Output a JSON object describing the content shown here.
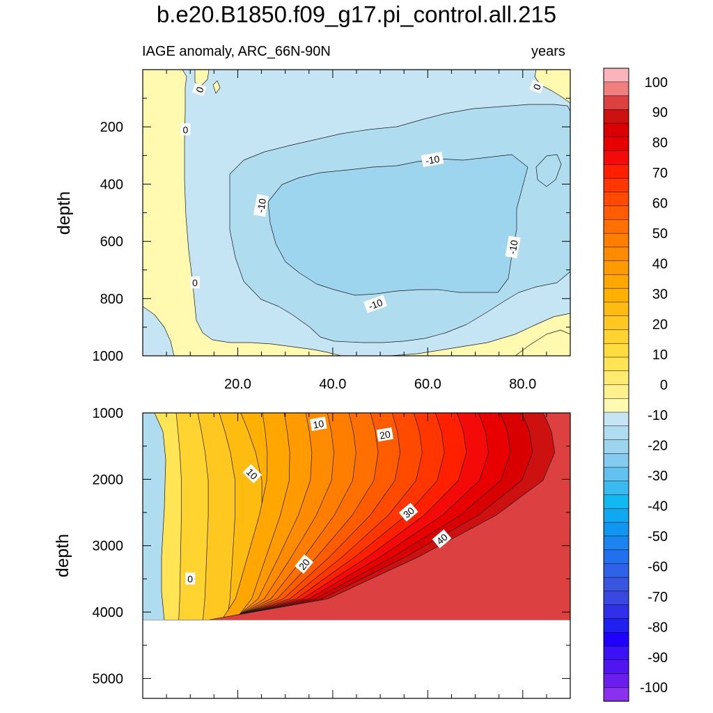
{
  "title": "b.e20.B1850.f09_g17.pi_control.all.215",
  "subtitle_left": "IAGE anomaly, ARC_66N-90N",
  "subtitle_right": "years",
  "chart_data": [
    {
      "type": "heatmap",
      "panel": "upper",
      "xlabel": "",
      "ylabel": "depth",
      "xlim": [
        0,
        90
      ],
      "ylim": [
        0,
        1000
      ],
      "y_inverted": true,
      "x_ticks": [
        "20.0",
        "40.0",
        "60.0",
        "80.0"
      ],
      "x_tick_values": [
        20,
        40,
        60,
        80
      ],
      "y_ticks": [
        "200",
        "400",
        "600",
        "800",
        "1000"
      ],
      "y_tick_values": [
        200,
        400,
        600,
        800,
        1000
      ],
      "contour_labels": [
        {
          "text": "0",
          "x": 12,
          "depth": 70,
          "angle": -70
        },
        {
          "text": "0",
          "x": 83,
          "depth": 60,
          "angle": -70
        },
        {
          "text": "0",
          "x": 9,
          "depth": 210,
          "angle": 0
        },
        {
          "text": "0",
          "x": 11,
          "depth": 745,
          "angle": 0
        },
        {
          "text": "-10",
          "x": 61,
          "depth": 315,
          "angle": -10
        },
        {
          "text": "-10",
          "x": 25,
          "depth": 475,
          "angle": -80
        },
        {
          "text": "-10",
          "x": 78,
          "depth": 620,
          "angle": -80
        },
        {
          "text": "-10",
          "x": 49,
          "depth": 820,
          "angle": -20
        }
      ],
      "field_summary": "anomaly near 0 at x<12 and near surface; about -5 over most of basin; core below -10 between x=28-80, depth 250-800"
    },
    {
      "type": "heatmap",
      "panel": "lower",
      "xlabel": "",
      "ylabel": "depth",
      "xlim": [
        0,
        90
      ],
      "ylim": [
        1000,
        5300
      ],
      "y_inverted": true,
      "data_max_depth": 4120,
      "y_ticks": [
        "1000",
        "2000",
        "3000",
        "4000",
        "5000"
      ],
      "y_tick_values": [
        1000,
        2000,
        3000,
        4000,
        5000
      ],
      "contour_labels": [
        {
          "text": "10",
          "x": 37,
          "depth": 1170,
          "angle": -10
        },
        {
          "text": "20",
          "x": 51,
          "depth": 1330,
          "angle": -10
        },
        {
          "text": "10",
          "x": 23,
          "depth": 1920,
          "angle": 45
        },
        {
          "text": "30",
          "x": 56,
          "depth": 2500,
          "angle": -40
        },
        {
          "text": "40",
          "x": 63,
          "depth": 2900,
          "angle": -40
        },
        {
          "text": "20",
          "x": 34,
          "depth": 3280,
          "angle": -50
        },
        {
          "text": "0",
          "x": 10,
          "depth": 3500,
          "angle": 0
        }
      ],
      "field_summary": "anomaly about -5 for x<10; increasing eastward and with depth, reaching about 90 at x=90, depth 4000"
    }
  ],
  "colorbar": {
    "labels": [
      "100",
      "90",
      "80",
      "70",
      "60",
      "50",
      "40",
      "30",
      "20",
      "10",
      "0",
      "-10",
      "-20",
      "-30",
      "-40",
      "-50",
      "-60",
      "-70",
      "-80",
      "-90",
      "-100"
    ],
    "colors": [
      "#fbb4b9",
      "#f08080",
      "#dd4040",
      "#cd1010",
      "#d80000",
      "#e80000",
      "#f50a0a",
      "#ff2000",
      "#ff3600",
      "#ff4a00",
      "#ff5c00",
      "#ff7000",
      "#ff7e00",
      "#ff8c00",
      "#ff9a00",
      "#ffa600",
      "#ffb000",
      "#ffbc10",
      "#ffc820",
      "#ffd430",
      "#ffdd40",
      "#ffe455",
      "#ffeb70",
      "#fff28e",
      "#fffaaf",
      "#c5e5f5",
      "#b0dcf0",
      "#9dd5ee",
      "#84cbef",
      "#63c1ef",
      "#3abbf0",
      "#10baf0",
      "#10a8f0",
      "#1096f0",
      "#1c84f0",
      "#2070f0",
      "#2e62e8",
      "#3a55e0",
      "#3848e0",
      "#3030e8",
      "#2020f0",
      "#2000ff",
      "#3a12f5",
      "#5016f0",
      "#6a1eed",
      "#8a30ee"
    ]
  }
}
